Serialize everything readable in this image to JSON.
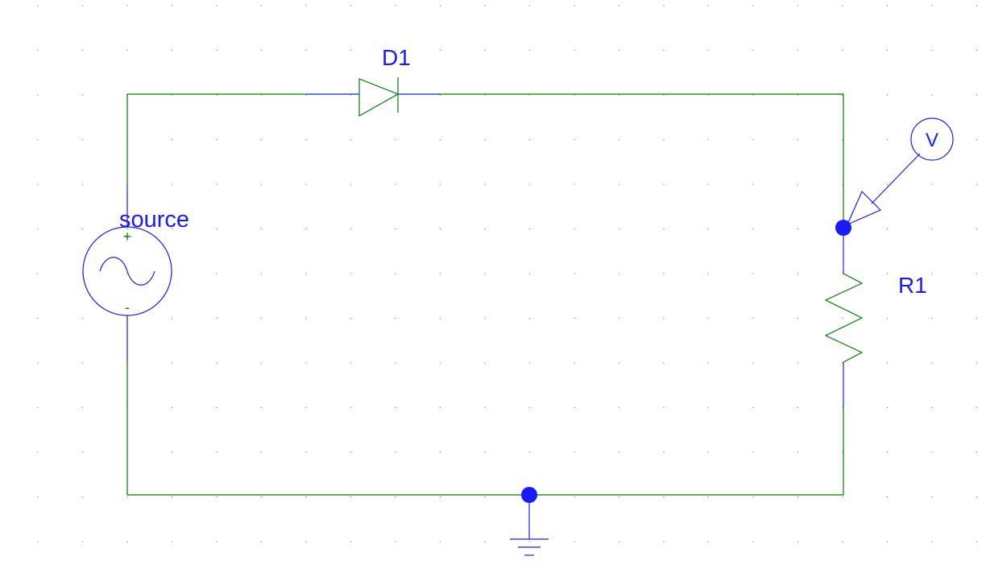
{
  "diagram": {
    "components": {
      "diode": {
        "ref": "D1"
      },
      "source": {
        "ref": "source",
        "plus": "+",
        "minus": "-"
      },
      "resistor": {
        "ref": "R1"
      },
      "probe": {
        "glyph": "V"
      }
    },
    "colors": {
      "wire": "#008000",
      "pin": "#1a1aff",
      "label": "#1a1aff",
      "grid_dot": "#9a9a9a",
      "background": "#ffffff"
    }
  }
}
